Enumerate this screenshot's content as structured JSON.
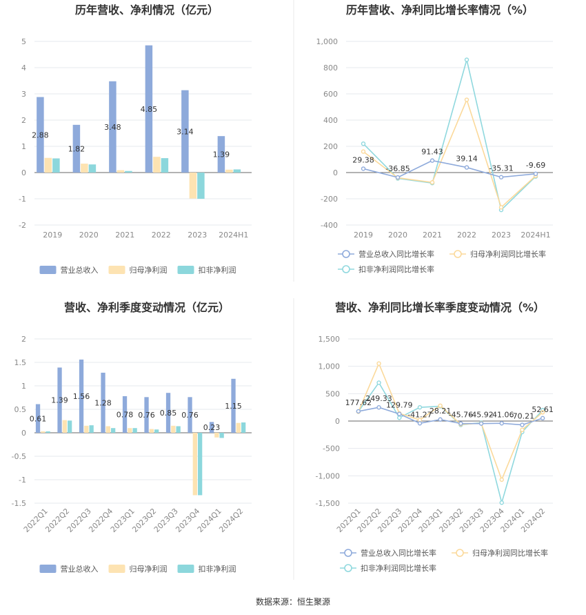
{
  "colors": {
    "revenue": "#8eaadb",
    "net_profit": "#fde3b2",
    "deducted_profit": "#8cd7dc",
    "revenue_line": "#8eaadb",
    "net_profit_line": "#fbd99a",
    "deducted_line": "#8fd8de"
  },
  "source": "数据来源：恒生聚源",
  "chart_data": [
    {
      "type": "bar",
      "title": "历年营收、净利情况（亿元）",
      "categories": [
        "2019",
        "2020",
        "2021",
        "2022",
        "2023",
        "2024H1"
      ],
      "series": [
        {
          "name": "营业总收入",
          "values": [
            2.88,
            1.82,
            3.48,
            4.85,
            3.14,
            1.39
          ]
        },
        {
          "name": "归母净利润",
          "values": [
            0.56,
            0.34,
            0.09,
            0.6,
            -0.99,
            0.11
          ]
        },
        {
          "name": "扣非净利润",
          "values": [
            0.54,
            0.31,
            0.06,
            0.55,
            -1.0,
            0.12
          ]
        }
      ],
      "data_labels": [
        "2.88",
        "1.82",
        "3.48",
        "4.85",
        "3.14",
        "1.39"
      ],
      "ylim": [
        -2,
        5
      ],
      "yticks": [
        "-2",
        "-1",
        "0",
        "1",
        "2",
        "3",
        "4",
        "5"
      ],
      "legend": "bottom",
      "grid": true
    },
    {
      "type": "line",
      "title": "历年营收、净利同比增长率情况（%）",
      "categories": [
        "2019",
        "2020",
        "2021",
        "2022",
        "2023",
        "2024H1"
      ],
      "series": [
        {
          "name": "营业总收入同比增长率",
          "values": [
            29.38,
            -36.85,
            91.43,
            39.14,
            -35.31,
            -9.69
          ]
        },
        {
          "name": "归母净利润同比增长率",
          "values": [
            160,
            -40,
            -75,
            555,
            -265,
            -25
          ]
        },
        {
          "name": "扣非净利润同比增长率",
          "values": [
            220,
            -45,
            -80,
            860,
            -285,
            -30
          ]
        }
      ],
      "data_labels": [
        "29.38",
        "-36.85",
        "91.43",
        "39.14",
        "-35.31",
        "-9.69"
      ],
      "ylim": [
        -400,
        1000
      ],
      "yticks": [
        "-400",
        "-200",
        "0",
        "200",
        "400",
        "600",
        "800",
        "1,000"
      ],
      "legend": "bottom",
      "grid": true
    },
    {
      "type": "bar",
      "title": "营收、净利季度变动情况（亿元）",
      "categories": [
        "2022Q1",
        "2022Q2",
        "2022Q3",
        "2022Q4",
        "2023Q1",
        "2023Q2",
        "2023Q3",
        "2023Q4",
        "2024Q1",
        "2024Q2"
      ],
      "series": [
        {
          "name": "营业总收入",
          "values": [
            0.61,
            1.39,
            1.56,
            1.28,
            0.78,
            0.76,
            0.85,
            0.76,
            0.23,
            1.15
          ]
        },
        {
          "name": "归母净利润",
          "values": [
            0.03,
            0.27,
            0.15,
            0.14,
            0.1,
            0.08,
            0.15,
            -1.33,
            -0.1,
            0.21
          ]
        },
        {
          "name": "扣非净利润",
          "values": [
            0.03,
            0.26,
            0.16,
            0.1,
            0.1,
            0.07,
            0.14,
            -1.33,
            -0.11,
            0.22
          ]
        }
      ],
      "data_labels": [
        "0.61",
        "1.39",
        "1.56",
        "1.28",
        "0.78",
        "0.76",
        "0.85",
        "0.76",
        "0.23",
        "1.15"
      ],
      "ylim": [
        -1.5,
        2
      ],
      "yticks": [
        "-1.5",
        "-1",
        "-0.5",
        "0",
        "0.5",
        "1",
        "1.5",
        "2"
      ],
      "legend": "bottom",
      "grid": true
    },
    {
      "type": "line",
      "title": "营收、净利同比增长率季度变动情况（%）",
      "categories": [
        "2022Q1",
        "2022Q2",
        "2022Q3",
        "2022Q4",
        "2023Q1",
        "2023Q2",
        "2023Q3",
        "2023Q4",
        "2024Q1",
        "2024Q2"
      ],
      "series": [
        {
          "name": "营业总收入同比增长率",
          "values": [
            177.62,
            249.33,
            129.79,
            -41.27,
            28.21,
            -45.76,
            -45.92,
            -41.06,
            -70.21,
            52.61
          ]
        },
        {
          "name": "归母净利润同比增长率",
          "values": [
            170,
            1050,
            140,
            20,
            280,
            -60,
            -40,
            -1070,
            -160,
            160
          ]
        },
        {
          "name": "扣非净利润同比增长率",
          "values": [
            175,
            700,
            60,
            250,
            270,
            -70,
            -30,
            -1490,
            -200,
            200
          ]
        }
      ],
      "data_labels": [
        "177.62",
        "249.33",
        "129.79",
        "-41.27",
        "28.21",
        "-45.76",
        "-45.92",
        "-41.06",
        "-70.21",
        "52.61"
      ],
      "ylim": [
        -1500,
        1500
      ],
      "yticks": [
        "-1,500",
        "-1,000",
        "-500",
        "0",
        "500",
        "1,000",
        "1,500"
      ],
      "legend": "bottom",
      "grid": true
    }
  ]
}
